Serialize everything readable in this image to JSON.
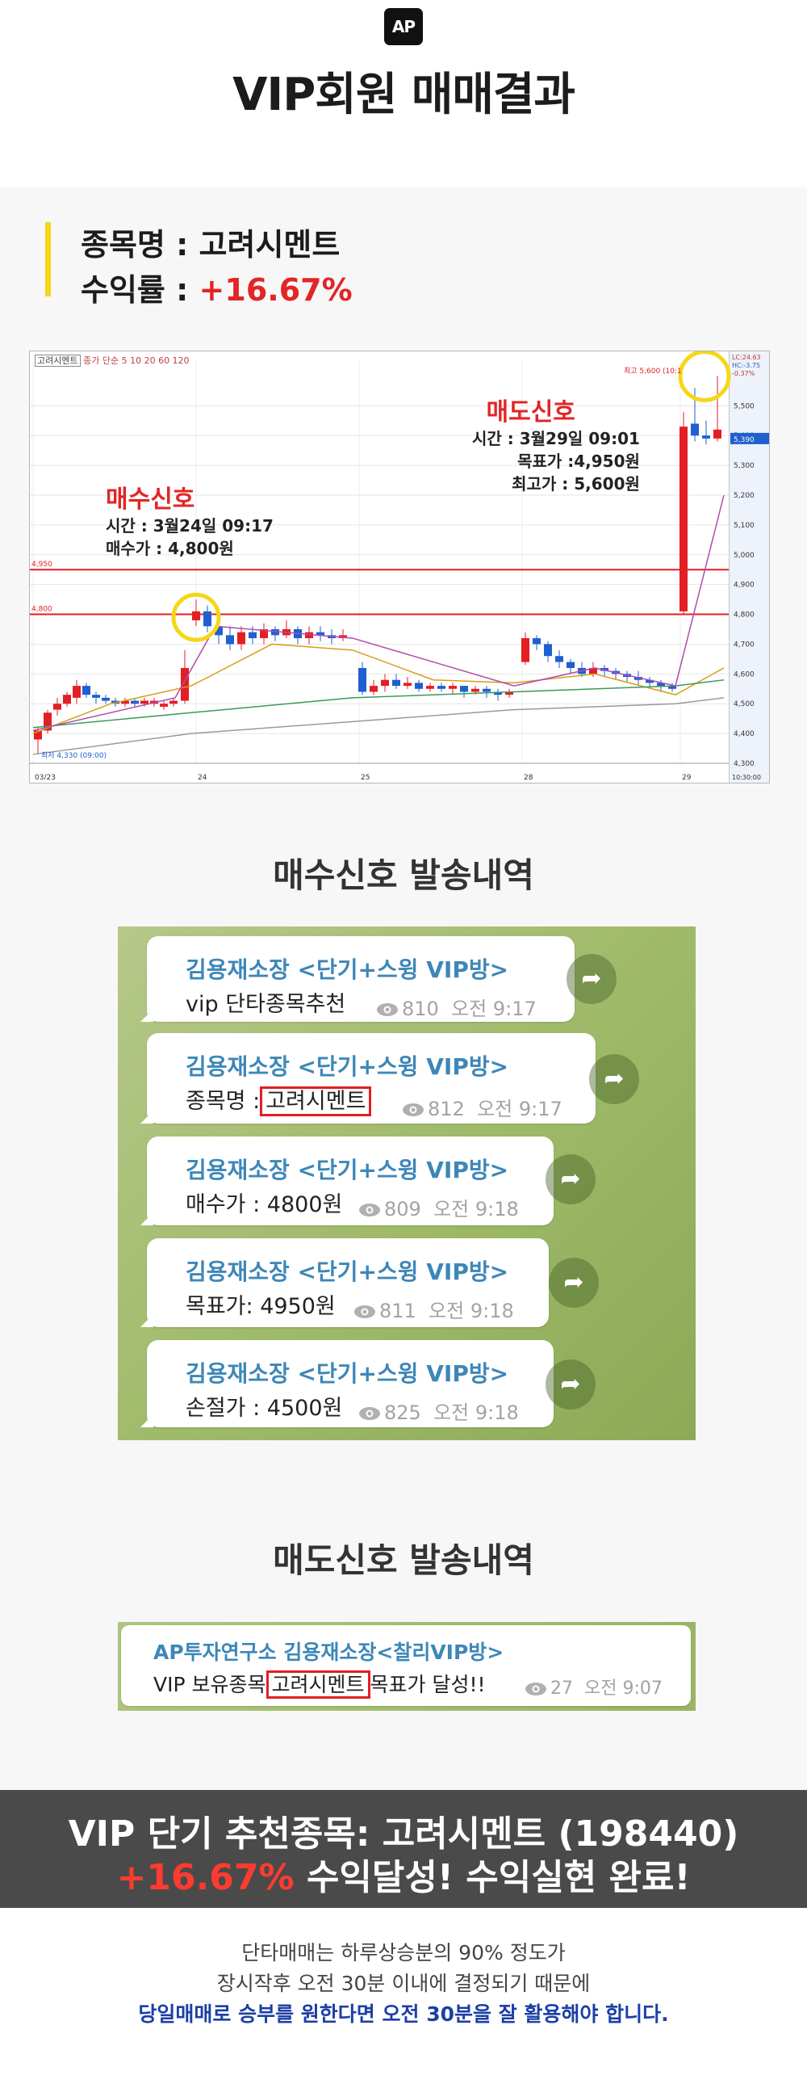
{
  "header": {
    "logo": "AP",
    "title": "VIP회원 매매결과"
  },
  "summary": {
    "stock_label": "종목명 : ",
    "stock_name": "고려시멘트",
    "profit_label": "수익률 : ",
    "profit_value": "+16.67%"
  },
  "chart": {
    "legend": "고려시멘트",
    "legend_extra": "종가 단순 5  10  20  60  120",
    "buy_signal": {
      "title": "매수신호",
      "time": "시간 : 3월24일 09:17",
      "price": "매수가 : 4,800원"
    },
    "sell_signal": {
      "title": "매도신호",
      "time": "시간 : 3월29일 09:01",
      "target": "목표가 :4,950원",
      "high": "최고가 : 5,600원"
    },
    "high_note": "최고 5,600 (10:1",
    "low_note": "최저 4,330 (09:00)",
    "level_labels": [
      "4,950",
      "4,800"
    ],
    "x_labels": [
      "03/23",
      "24",
      "25",
      "28",
      "29"
    ],
    "y_labels": [
      "5,500",
      "5,400",
      "5,300",
      "5,200",
      "5,100",
      "5,000",
      "4,900",
      "4,800",
      "4,700",
      "4,600",
      "4,500",
      "4,400",
      "4,300"
    ],
    "current_price": "5,390",
    "axis_top": [
      "LC:24.63",
      "HC:-3.75",
      "-0.37%"
    ],
    "axis_time": "10:30:00"
  },
  "buy_section": {
    "heading": "매수신호 발송내역",
    "messages": [
      {
        "sender": "김용재소장 <단기+스윙 VIP방>",
        "text": "vip 단타종목추천",
        "highlight": "",
        "views": "810",
        "time": "오전 9:17"
      },
      {
        "sender": "김용재소장 <단기+스윙 VIP방>",
        "text": "종목명 :",
        "highlight": "고려시멘트",
        "views": "812",
        "time": "오전 9:17"
      },
      {
        "sender": "김용재소장 <단기+스윙 VIP방>",
        "text": "매수가 : 4800원",
        "highlight": "",
        "views": "809",
        "time": "오전 9:18"
      },
      {
        "sender": "김용재소장 <단기+스윙 VIP방>",
        "text": "목표가: 4950원",
        "highlight": "",
        "views": "811",
        "time": "오전 9:18"
      },
      {
        "sender": "김용재소장 <단기+스윙 VIP방>",
        "text": "손절가 : 4500원",
        "highlight": "",
        "views": "825",
        "time": "오전 9:18"
      }
    ]
  },
  "sell_section": {
    "heading": "매도신호 발송내역",
    "message": {
      "sender": "AP투자연구소 김용재소장<찰리VIP방>",
      "text_before": "VIP 보유종목",
      "highlight": "고려시멘트",
      "text_after": "목표가 달성!!",
      "views": "27",
      "time": "오전 9:07"
    }
  },
  "banner": {
    "line1": "VIP 단기 추천종목: 고려시멘트 (198440)",
    "line2_red": "+16.67%",
    "line2_rest": " 수익달성! 수익실현 완료!"
  },
  "footer": {
    "line1": "단타매매는 하루상승분의 90% 정도가",
    "line2": "장시작후 오전 30분 이내에 결정되기 때문에",
    "line3": "당일매매로 승부를 원한다면 오전 30분을 잘 활용해야 합니다."
  },
  "colors": {
    "accent": "#f5d718",
    "profit_red": "#e22525",
    "sender_blue": "#3d87b8",
    "footer_blue": "#1c3fa6",
    "candle_up": "#e31e24",
    "candle_down": "#1f5fcf"
  }
}
